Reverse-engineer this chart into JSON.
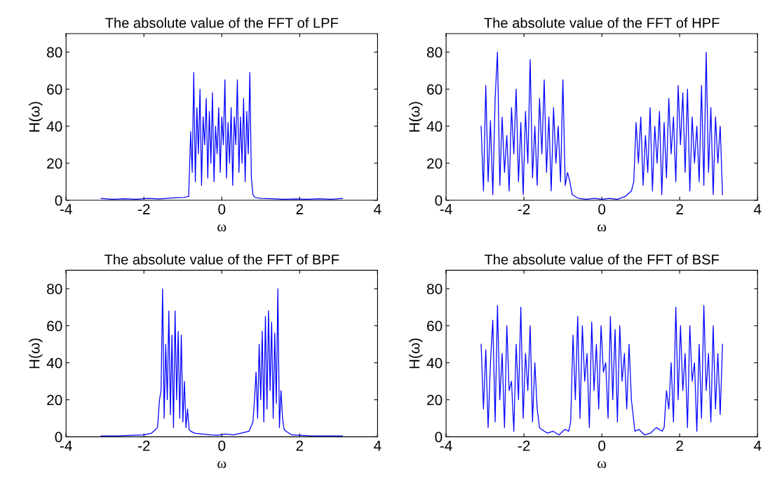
{
  "chart_data": [
    {
      "type": "line",
      "title": "The absolute value of the FFT of LPF",
      "xlabel": "ω",
      "ylabel": "H(ω)",
      "xlim": [
        -4,
        4
      ],
      "ylim": [
        0,
        90
      ],
      "xticks": [
        -4,
        -2,
        0,
        2,
        4
      ],
      "yticks": [
        0,
        20,
        40,
        60,
        80
      ],
      "series": [
        {
          "color": "#0000ff",
          "x": [
            -3.1,
            -2.8,
            -2.5,
            -2.2,
            -1.9,
            -1.6,
            -1.3,
            -1.0,
            -0.85,
            -0.8,
            -0.76,
            -0.72,
            -0.68,
            -0.64,
            -0.6,
            -0.56,
            -0.52,
            -0.48,
            -0.44,
            -0.4,
            -0.36,
            -0.32,
            -0.28,
            -0.24,
            -0.2,
            -0.16,
            -0.12,
            -0.08,
            -0.04,
            0,
            0.04,
            0.08,
            0.12,
            0.16,
            0.2,
            0.24,
            0.28,
            0.32,
            0.36,
            0.4,
            0.44,
            0.48,
            0.52,
            0.56,
            0.6,
            0.64,
            0.68,
            0.72,
            0.76,
            0.8,
            0.85,
            1.0,
            1.3,
            1.6,
            1.9,
            2.2,
            2.5,
            2.8,
            3.1
          ],
          "values": [
            1,
            0.5,
            0.8,
            0.5,
            1,
            0.7,
            1.2,
            1.5,
            2,
            37,
            15,
            69,
            10,
            50,
            25,
            60,
            8,
            45,
            30,
            55,
            12,
            48,
            20,
            58,
            10,
            40,
            25,
            50,
            15,
            45,
            30,
            65,
            12,
            42,
            20,
            50,
            8,
            45,
            30,
            65,
            15,
            45,
            20,
            55,
            10,
            48,
            25,
            69,
            12,
            3,
            1.5,
            1,
            0.8,
            0.5,
            0.7,
            0.5,
            0.8,
            0.5,
            1
          ]
        }
      ]
    },
    {
      "type": "line",
      "title": "The absolute value of the FFT of HPF",
      "xlabel": "ω",
      "ylabel": "H(ω)",
      "xlim": [
        -4,
        4
      ],
      "ylim": [
        0,
        90
      ],
      "xticks": [
        -4,
        -2,
        0,
        2,
        4
      ],
      "yticks": [
        0,
        20,
        40,
        60,
        80
      ],
      "series": [
        {
          "color": "#0000ff",
          "x": [
            -3.1,
            -3.04,
            -2.98,
            -2.92,
            -2.86,
            -2.8,
            -2.74,
            -2.68,
            -2.62,
            -2.56,
            -2.5,
            -2.44,
            -2.38,
            -2.32,
            -2.26,
            -2.2,
            -2.14,
            -2.08,
            -2.02,
            -1.96,
            -1.9,
            -1.84,
            -1.78,
            -1.72,
            -1.66,
            -1.6,
            -1.54,
            -1.48,
            -1.42,
            -1.36,
            -1.3,
            -1.24,
            -1.18,
            -1.12,
            -1.06,
            -1.0,
            -0.94,
            -0.88,
            -0.82,
            -0.76,
            -0.6,
            -0.4,
            -0.2,
            0,
            0.2,
            0.4,
            0.6,
            0.76,
            0.82,
            0.88,
            0.94,
            1.0,
            1.06,
            1.12,
            1.18,
            1.24,
            1.3,
            1.36,
            1.42,
            1.48,
            1.54,
            1.6,
            1.66,
            1.72,
            1.78,
            1.84,
            1.9,
            1.96,
            2.02,
            2.08,
            2.14,
            2.2,
            2.26,
            2.32,
            2.38,
            2.44,
            2.5,
            2.56,
            2.62,
            2.68,
            2.74,
            2.8,
            2.86,
            2.92,
            2.98,
            3.04,
            3.1
          ],
          "values": [
            40,
            5,
            62,
            10,
            43,
            3,
            55,
            80,
            8,
            45,
            15,
            35,
            5,
            50,
            25,
            60,
            10,
            42,
            3,
            48,
            20,
            76,
            12,
            40,
            8,
            55,
            25,
            65,
            15,
            45,
            5,
            50,
            20,
            40,
            10,
            65,
            8,
            15,
            10,
            3,
            1,
            0.5,
            1,
            0.5,
            1,
            0.5,
            2,
            5,
            10,
            42,
            20,
            45,
            8,
            35,
            15,
            50,
            5,
            40,
            20,
            48,
            3,
            42,
            12,
            55,
            25,
            45,
            10,
            62,
            30,
            58,
            15,
            60,
            5,
            45,
            20,
            40,
            10,
            62,
            8,
            80,
            15,
            50,
            3,
            45,
            20,
            40,
            3
          ]
        }
      ]
    },
    {
      "type": "line",
      "title": "The absolute value of the FFT of BPF",
      "xlabel": "ω",
      "ylabel": "H(ω)",
      "xlim": [
        -4,
        4
      ],
      "ylim": [
        0,
        90
      ],
      "xticks": [
        -4,
        -2,
        0,
        2,
        4
      ],
      "yticks": [
        0,
        20,
        40,
        60,
        80
      ],
      "series": [
        {
          "color": "#0000ff",
          "x": [
            -3.1,
            -2.7,
            -2.3,
            -2.0,
            -1.8,
            -1.65,
            -1.6,
            -1.56,
            -1.52,
            -1.48,
            -1.44,
            -1.4,
            -1.36,
            -1.32,
            -1.28,
            -1.24,
            -1.2,
            -1.16,
            -1.12,
            -1.08,
            -1.04,
            -1.0,
            -0.96,
            -0.92,
            -0.88,
            -0.84,
            -0.8,
            -0.7,
            -0.5,
            -0.3,
            -0.1,
            0.1,
            0.3,
            0.5,
            0.7,
            0.8,
            0.84,
            0.88,
            0.92,
            0.96,
            1.0,
            1.04,
            1.08,
            1.12,
            1.16,
            1.2,
            1.24,
            1.28,
            1.32,
            1.36,
            1.4,
            1.44,
            1.48,
            1.52,
            1.56,
            1.6,
            1.65,
            1.8,
            2.0,
            2.3,
            2.7,
            3.1
          ],
          "values": [
            0.5,
            0.5,
            0.8,
            1,
            2,
            5,
            20,
            25,
            80,
            10,
            50,
            20,
            68,
            12,
            55,
            5,
            68,
            20,
            57,
            10,
            55,
            8,
            30,
            5,
            15,
            4,
            3,
            2,
            1.5,
            1,
            0.8,
            1.5,
            1,
            2,
            3,
            8,
            20,
            35,
            10,
            50,
            20,
            57,
            8,
            65,
            15,
            68,
            25,
            62,
            10,
            56,
            18,
            80,
            5,
            25,
            10,
            4,
            3,
            1,
            0.8,
            0.5,
            0.5,
            0.5
          ]
        }
      ]
    },
    {
      "type": "line",
      "title": "The absolute value of the FFT of BSF",
      "xlabel": "ω",
      "ylabel": "H(ω)",
      "xlim": [
        -4,
        4
      ],
      "ylim": [
        0,
        90
      ],
      "xticks": [
        -4,
        -2,
        0,
        2,
        4
      ],
      "yticks": [
        0,
        20,
        40,
        60,
        80
      ],
      "series": [
        {
          "color": "#0000ff",
          "x": [
            -3.1,
            -3.04,
            -2.98,
            -2.92,
            -2.86,
            -2.8,
            -2.74,
            -2.68,
            -2.62,
            -2.56,
            -2.5,
            -2.44,
            -2.38,
            -2.32,
            -2.26,
            -2.2,
            -2.14,
            -2.08,
            -2.02,
            -1.96,
            -1.9,
            -1.84,
            -1.78,
            -1.72,
            -1.66,
            -1.6,
            -1.55,
            -1.4,
            -1.25,
            -1.1,
            -0.95,
            -0.85,
            -0.8,
            -0.74,
            -0.68,
            -0.62,
            -0.56,
            -0.5,
            -0.44,
            -0.38,
            -0.32,
            -0.26,
            -0.2,
            -0.14,
            -0.08,
            -0.02,
            0.04,
            0.1,
            0.16,
            0.22,
            0.28,
            0.34,
            0.4,
            0.46,
            0.52,
            0.58,
            0.64,
            0.7,
            0.76,
            0.85,
            0.95,
            1.1,
            1.25,
            1.4,
            1.55,
            1.6,
            1.66,
            1.72,
            1.78,
            1.84,
            1.9,
            1.96,
            2.02,
            2.08,
            2.14,
            2.2,
            2.26,
            2.32,
            2.38,
            2.44,
            2.5,
            2.56,
            2.62,
            2.68,
            2.74,
            2.8,
            2.86,
            2.92,
            2.98,
            3.04,
            3.1
          ],
          "values": [
            50,
            15,
            47,
            5,
            40,
            63,
            8,
            71,
            20,
            45,
            5,
            60,
            25,
            30,
            3,
            50,
            20,
            70,
            10,
            45,
            25,
            60,
            8,
            40,
            15,
            5,
            4,
            2,
            3,
            1,
            4,
            3,
            8,
            55,
            20,
            65,
            10,
            60,
            30,
            45,
            5,
            62,
            25,
            50,
            15,
            60,
            35,
            40,
            10,
            65,
            20,
            58,
            8,
            60,
            30,
            45,
            15,
            50,
            20,
            3,
            4,
            1,
            2,
            5,
            3,
            5,
            25,
            15,
            40,
            8,
            70,
            20,
            60,
            25,
            45,
            5,
            60,
            30,
            40,
            3,
            50,
            10,
            71,
            25,
            45,
            8,
            60,
            15,
            45,
            12,
            50
          ]
        }
      ]
    }
  ]
}
